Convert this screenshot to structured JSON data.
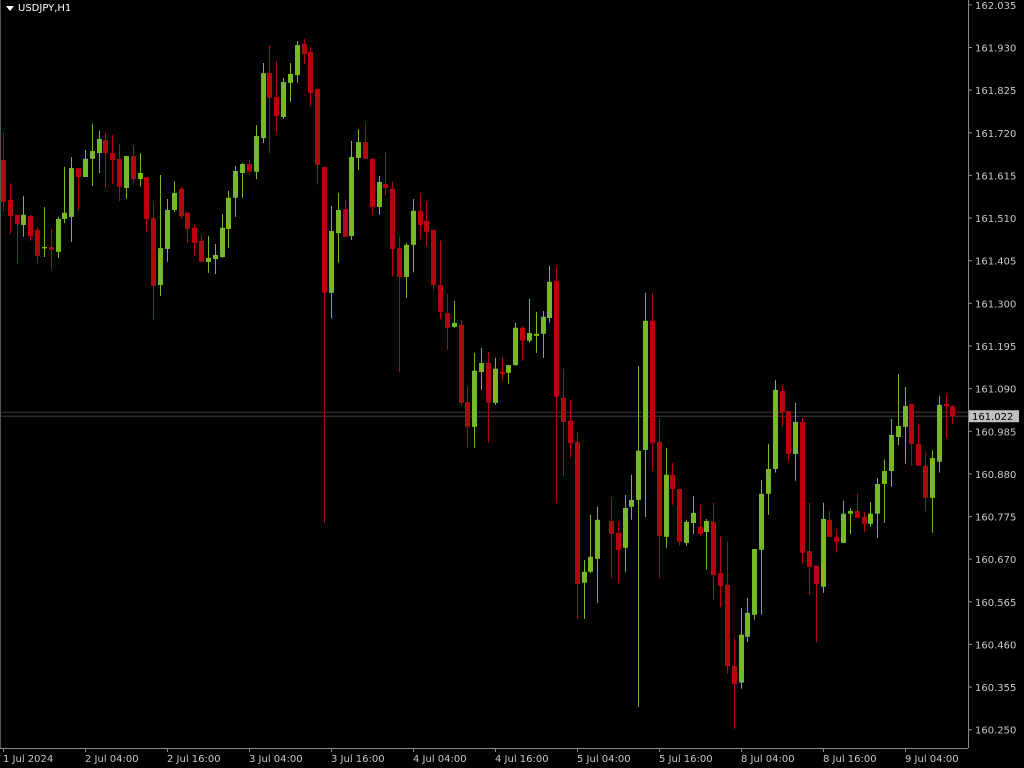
{
  "header": {
    "symbol_timeframe": "USDJPY,H1"
  },
  "colors": {
    "background": "#000000",
    "bull": "#76b82a",
    "bear": "#b3060e",
    "axis": "#8a8a8a",
    "bid_line": "#3c3c3c",
    "price_label_bg": "#c0c0c0"
  },
  "chart_data": {
    "type": "candlestick",
    "symbol": "USDJPY",
    "timeframe": "H1",
    "current_price": "161.022",
    "ylim": [
      160.205,
      162.047
    ],
    "y_ticks": [
      "162.035",
      "161.930",
      "161.825",
      "161.720",
      "161.615",
      "161.510",
      "161.405",
      "161.300",
      "161.195",
      "161.090",
      "160.985",
      "160.880",
      "160.775",
      "160.670",
      "160.565",
      "160.460",
      "160.355",
      "160.250"
    ],
    "x_labels": [
      "1 Jul 2024",
      "2 Jul 04:00",
      "2 Jul 16:00",
      "3 Jul 04:00",
      "3 Jul 16:00",
      "4 Jul 04:00",
      "4 Jul 16:00",
      "5 Jul 04:00",
      "5 Jul 16:00",
      "8 Jul 04:00",
      "8 Jul 16:00",
      "9 Jul 04:00"
    ],
    "ohlc_format": [
      "open",
      "high",
      "low",
      "close"
    ],
    "candles": [
      [
        161.653,
        161.722,
        161.525,
        161.55
      ],
      [
        161.555,
        161.596,
        161.471,
        161.515
      ],
      [
        161.518,
        161.518,
        161.4,
        161.496
      ],
      [
        161.493,
        161.564,
        161.464,
        161.518
      ],
      [
        161.515,
        161.518,
        161.454,
        161.466
      ],
      [
        161.481,
        161.486,
        161.4,
        161.417
      ],
      [
        161.436,
        161.537,
        161.414,
        161.439
      ],
      [
        161.439,
        161.483,
        161.385,
        161.432
      ],
      [
        161.427,
        161.513,
        161.412,
        161.508
      ],
      [
        161.508,
        161.636,
        161.498,
        161.523
      ],
      [
        161.513,
        161.66,
        161.451,
        161.633
      ],
      [
        161.633,
        161.633,
        161.528,
        161.611
      ],
      [
        161.611,
        161.678,
        161.611,
        161.656
      ],
      [
        161.656,
        161.742,
        161.589,
        161.675
      ],
      [
        161.67,
        161.725,
        161.621,
        161.705
      ],
      [
        161.702,
        161.72,
        161.584,
        161.67
      ],
      [
        161.67,
        161.715,
        161.594,
        161.653
      ],
      [
        161.656,
        161.693,
        161.552,
        161.587
      ],
      [
        161.584,
        161.663,
        161.557,
        161.663
      ],
      [
        161.663,
        161.688,
        161.596,
        161.606
      ],
      [
        161.606,
        161.67,
        161.587,
        161.621
      ],
      [
        161.611,
        161.611,
        161.476,
        161.508
      ],
      [
        161.51,
        161.55,
        161.262,
        161.343
      ],
      [
        161.345,
        161.616,
        161.318,
        161.436
      ],
      [
        161.434,
        161.557,
        161.402,
        161.53
      ],
      [
        161.53,
        161.601,
        161.525,
        161.572
      ],
      [
        161.582,
        161.587,
        161.508,
        161.515
      ],
      [
        161.523,
        161.525,
        161.449,
        161.483
      ],
      [
        161.486,
        161.493,
        161.417,
        161.449
      ],
      [
        161.454,
        161.468,
        161.402,
        161.402
      ],
      [
        161.402,
        161.466,
        161.375,
        161.412
      ],
      [
        161.409,
        161.446,
        161.372,
        161.419
      ],
      [
        161.414,
        161.52,
        161.412,
        161.486
      ],
      [
        161.483,
        161.577,
        161.436,
        161.56
      ],
      [
        161.56,
        161.638,
        161.513,
        161.626
      ],
      [
        161.621,
        161.646,
        161.56,
        161.643
      ],
      [
        161.643,
        161.653,
        161.616,
        161.624
      ],
      [
        161.624,
        161.739,
        161.606,
        161.712
      ],
      [
        161.707,
        161.892,
        161.695,
        161.867
      ],
      [
        161.867,
        161.936,
        161.67,
        161.806
      ],
      [
        161.808,
        161.897,
        161.72,
        161.761
      ],
      [
        161.759,
        161.855,
        161.754,
        161.845
      ],
      [
        161.843,
        161.892,
        161.796,
        161.865
      ],
      [
        161.862,
        161.946,
        161.843,
        161.936
      ],
      [
        161.939,
        161.951,
        161.889,
        161.914
      ],
      [
        161.919,
        161.931,
        161.784,
        161.818
      ],
      [
        161.828,
        161.828,
        161.592,
        161.641
      ],
      [
        161.636,
        161.636,
        160.759,
        161.326
      ],
      [
        161.326,
        161.54,
        161.262,
        161.478
      ],
      [
        161.473,
        161.572,
        161.4,
        161.53
      ],
      [
        161.532,
        161.555,
        161.464,
        161.464
      ],
      [
        161.466,
        161.7,
        161.456,
        161.66
      ],
      [
        161.658,
        161.729,
        161.628,
        161.697
      ],
      [
        161.697,
        161.744,
        161.656,
        161.656
      ],
      [
        161.656,
        161.656,
        161.52,
        161.537
      ],
      [
        161.537,
        161.614,
        161.518,
        161.599
      ],
      [
        161.594,
        161.673,
        161.564,
        161.584
      ],
      [
        161.582,
        161.599,
        161.367,
        161.434
      ],
      [
        161.436,
        161.464,
        161.131,
        161.365
      ],
      [
        161.365,
        161.449,
        161.313,
        161.444
      ],
      [
        161.444,
        161.557,
        161.377,
        161.528
      ],
      [
        161.528,
        161.569,
        161.461,
        161.493
      ],
      [
        161.503,
        161.55,
        161.441,
        161.476
      ],
      [
        161.481,
        161.481,
        161.333,
        161.345
      ],
      [
        161.345,
        161.454,
        161.262,
        161.279
      ],
      [
        161.276,
        161.323,
        161.185,
        161.24
      ],
      [
        161.242,
        161.306,
        161.24,
        161.252
      ],
      [
        161.247,
        161.259,
        161.047,
        161.055
      ],
      [
        161.057,
        161.094,
        160.944,
        160.996
      ],
      [
        160.996,
        161.178,
        160.944,
        161.134
      ],
      [
        161.131,
        161.19,
        161.087,
        161.153
      ],
      [
        161.153,
        161.18,
        160.956,
        161.055
      ],
      [
        161.055,
        161.166,
        161.05,
        161.139
      ],
      [
        161.131,
        161.168,
        161.109,
        161.126
      ],
      [
        161.129,
        161.148,
        161.102,
        161.148
      ],
      [
        161.148,
        161.252,
        161.146,
        161.24
      ],
      [
        161.24,
        161.244,
        161.158,
        161.208
      ],
      [
        161.208,
        161.311,
        161.203,
        161.227
      ],
      [
        161.22,
        161.279,
        161.178,
        161.225
      ],
      [
        161.225,
        161.281,
        161.166,
        161.267
      ],
      [
        161.264,
        161.392,
        161.252,
        161.353
      ],
      [
        161.355,
        161.39,
        160.809,
        161.07
      ],
      [
        161.067,
        161.139,
        160.875,
        161.008
      ],
      [
        161.011,
        161.062,
        160.919,
        160.956
      ],
      [
        160.959,
        160.981,
        160.523,
        160.609
      ],
      [
        160.612,
        160.668,
        160.523,
        160.639
      ],
      [
        160.639,
        160.779,
        160.636,
        160.676
      ],
      [
        160.671,
        160.799,
        160.562,
        160.767
      ],
      null,
      [
        160.764,
        160.821,
        160.624,
        160.732
      ],
      [
        160.735,
        160.762,
        160.612,
        160.693
      ],
      [
        160.698,
        160.828,
        160.639,
        160.796
      ],
      [
        160.799,
        160.878,
        160.767,
        160.816
      ],
      [
        160.816,
        161.146,
        160.306,
        160.937
      ],
      [
        160.939,
        161.326,
        160.774,
        161.257
      ],
      [
        161.257,
        161.326,
        160.89,
        160.956
      ],
      [
        160.959,
        161.018,
        160.624,
        160.727
      ],
      [
        160.725,
        160.944,
        160.698,
        160.878
      ],
      [
        160.878,
        160.907,
        160.804,
        160.843
      ],
      [
        160.843,
        160.843,
        160.703,
        160.713
      ],
      [
        160.71,
        160.767,
        160.703,
        160.762
      ],
      [
        160.759,
        160.826,
        160.732,
        160.784
      ],
      [
        160.75,
        160.804,
        160.727,
        160.732
      ],
      [
        160.737,
        160.769,
        160.644,
        160.764
      ],
      [
        160.762,
        160.809,
        160.57,
        160.631
      ],
      [
        160.636,
        160.727,
        160.553,
        160.604
      ],
      [
        160.607,
        160.713,
        160.388,
        160.407
      ],
      [
        160.407,
        160.476,
        160.252,
        160.363
      ],
      [
        160.366,
        160.55,
        160.351,
        160.484
      ],
      [
        160.479,
        160.575,
        160.466,
        160.538
      ],
      [
        160.533,
        160.695,
        160.521,
        160.695
      ],
      [
        160.693,
        160.865,
        160.533,
        160.831
      ],
      [
        160.831,
        160.954,
        160.779,
        160.892
      ],
      [
        160.892,
        161.111,
        160.883,
        161.087
      ],
      [
        161.084,
        161.097,
        160.996,
        161.033
      ],
      [
        161.035,
        161.035,
        160.912,
        160.929
      ],
      [
        160.929,
        161.055,
        160.863,
        161.008
      ],
      [
        161.008,
        161.018,
        160.658,
        160.686
      ],
      [
        160.69,
        160.809,
        160.582,
        160.651
      ],
      [
        160.654,
        160.654,
        160.466,
        160.609
      ],
      [
        160.602,
        160.809,
        160.587,
        160.769
      ],
      [
        160.767,
        160.789,
        160.725,
        160.725
      ],
      [
        160.725,
        160.742,
        160.686,
        160.713
      ],
      [
        160.71,
        160.814,
        160.71,
        160.782
      ],
      [
        160.782,
        160.796,
        160.732,
        160.789
      ],
      [
        160.789,
        160.831,
        160.772,
        160.772
      ],
      [
        160.774,
        160.787,
        160.737,
        160.757
      ],
      [
        160.757,
        160.811,
        160.75,
        160.782
      ],
      [
        160.782,
        160.87,
        160.722,
        160.855
      ],
      [
        160.855,
        160.915,
        160.759,
        160.887
      ],
      [
        160.887,
        161.015,
        160.848,
        160.976
      ],
      [
        160.971,
        161.126,
        160.951,
        160.998
      ],
      [
        160.996,
        161.094,
        160.905,
        161.047
      ],
      [
        161.052,
        161.052,
        160.9,
        160.954
      ],
      [
        160.954,
        161.001,
        160.9,
        160.9
      ],
      [
        160.9,
        160.932,
        160.789,
        160.821
      ],
      [
        160.821,
        160.939,
        160.735,
        160.919
      ],
      [
        160.91,
        161.072,
        160.883,
        161.05
      ],
      [
        161.052,
        161.075,
        160.969,
        161.047
      ],
      [
        161.047,
        161.05,
        161.003,
        161.022
      ]
    ],
    "grid": false
  }
}
